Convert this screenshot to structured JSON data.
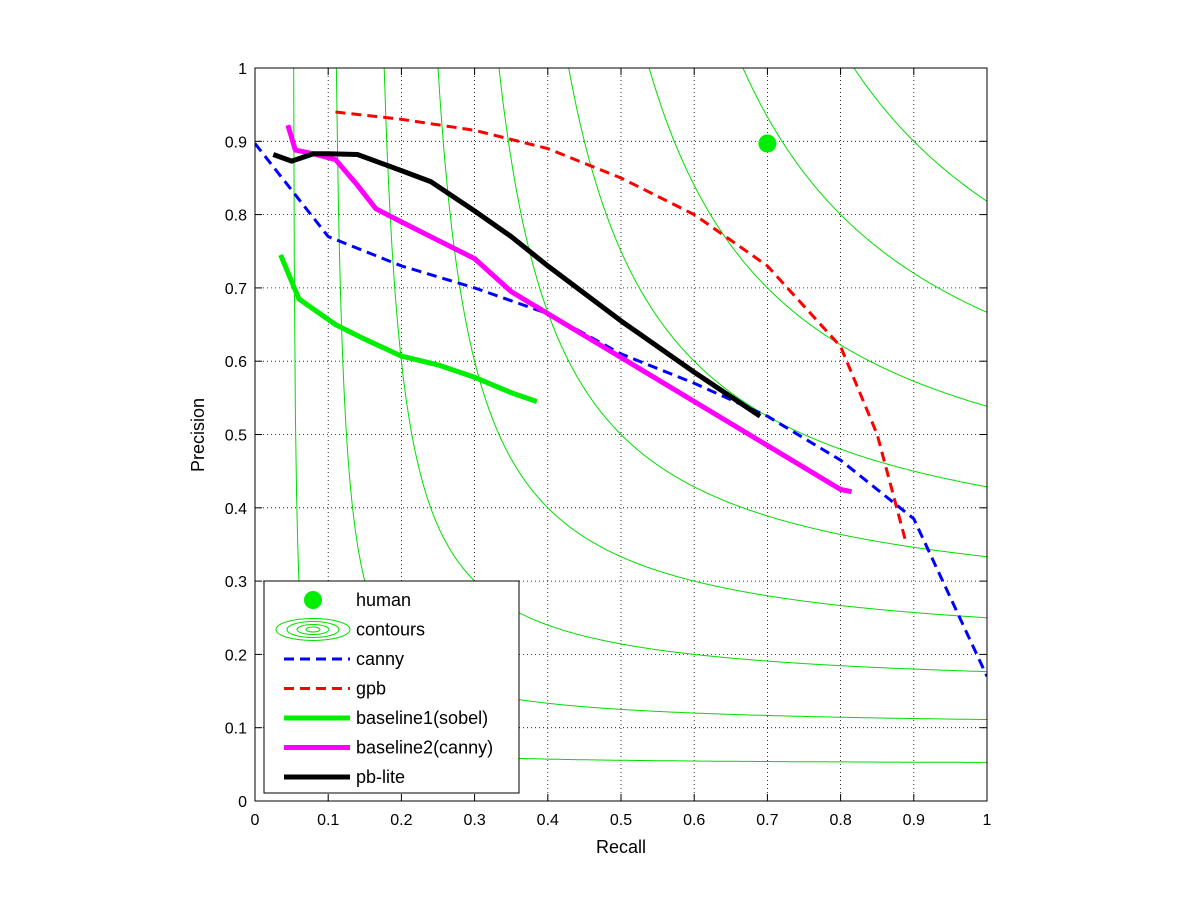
{
  "chart_data": {
    "type": "line",
    "xlabel": "Recall",
    "ylabel": "Precision",
    "xlim": [
      0,
      1
    ],
    "ylim": [
      0,
      1
    ],
    "xticks": [
      0,
      0.1,
      0.2,
      0.3,
      0.4,
      0.5,
      0.6,
      0.7,
      0.8,
      0.9,
      1
    ],
    "yticks": [
      0,
      0.1,
      0.2,
      0.3,
      0.4,
      0.5,
      0.6,
      0.7,
      0.8,
      0.9,
      1
    ],
    "xtick_labels": [
      "0",
      "0.1",
      "0.2",
      "0.3",
      "0.4",
      "0.5",
      "0.6",
      "0.7",
      "0.8",
      "0.9",
      "1"
    ],
    "ytick_labels": [
      "0",
      "0.1",
      "0.2",
      "0.3",
      "0.4",
      "0.5",
      "0.6",
      "0.7",
      "0.8",
      "0.9",
      "1"
    ],
    "grid": true,
    "legend_position": "bottom-left",
    "contours": {
      "label": "contours",
      "color": "#00dd00",
      "f_values": [
        0.1,
        0.2,
        0.3,
        0.4,
        0.5,
        0.6,
        0.7,
        0.8,
        0.9
      ]
    },
    "series": [
      {
        "name": "human",
        "style": "marker",
        "color": "#00ee00",
        "points": [
          [
            0.7,
            0.897
          ]
        ]
      },
      {
        "name": "canny",
        "style": "dashed",
        "color": "#0000ff",
        "points": [
          [
            0.0,
            0.897
          ],
          [
            0.1,
            0.77
          ],
          [
            0.2,
            0.73
          ],
          [
            0.3,
            0.7
          ],
          [
            0.4,
            0.665
          ],
          [
            0.5,
            0.61
          ],
          [
            0.6,
            0.57
          ],
          [
            0.7,
            0.525
          ],
          [
            0.8,
            0.465
          ],
          [
            0.9,
            0.385
          ],
          [
            1.0,
            0.17
          ]
        ]
      },
      {
        "name": "gpb",
        "style": "dashed",
        "color": "#ff0000",
        "points": [
          [
            0.11,
            0.94
          ],
          [
            0.2,
            0.93
          ],
          [
            0.3,
            0.915
          ],
          [
            0.4,
            0.89
          ],
          [
            0.5,
            0.85
          ],
          [
            0.6,
            0.8
          ],
          [
            0.7,
            0.73
          ],
          [
            0.8,
            0.62
          ],
          [
            0.85,
            0.5
          ],
          [
            0.89,
            0.35
          ]
        ]
      },
      {
        "name": "baseline1(sobel)",
        "style": "solid",
        "color": "#00ee00",
        "points": [
          [
            0.035,
            0.745
          ],
          [
            0.06,
            0.685
          ],
          [
            0.11,
            0.65
          ],
          [
            0.15,
            0.63
          ],
          [
            0.2,
            0.607
          ],
          [
            0.25,
            0.595
          ],
          [
            0.3,
            0.578
          ],
          [
            0.35,
            0.557
          ],
          [
            0.385,
            0.545
          ]
        ]
      },
      {
        "name": "baseline2(canny)",
        "style": "solid",
        "color": "#ff00ff",
        "points": [
          [
            0.045,
            0.922
          ],
          [
            0.055,
            0.888
          ],
          [
            0.08,
            0.883
          ],
          [
            0.11,
            0.875
          ],
          [
            0.14,
            0.84
          ],
          [
            0.165,
            0.808
          ],
          [
            0.2,
            0.79
          ],
          [
            0.25,
            0.765
          ],
          [
            0.3,
            0.74
          ],
          [
            0.35,
            0.695
          ],
          [
            0.4,
            0.665
          ],
          [
            0.5,
            0.605
          ],
          [
            0.6,
            0.545
          ],
          [
            0.7,
            0.485
          ],
          [
            0.8,
            0.425
          ],
          [
            0.815,
            0.422
          ]
        ]
      },
      {
        "name": "pb-lite",
        "style": "solid",
        "color": "#000000",
        "points": [
          [
            0.025,
            0.882
          ],
          [
            0.05,
            0.873
          ],
          [
            0.08,
            0.883
          ],
          [
            0.1,
            0.883
          ],
          [
            0.14,
            0.882
          ],
          [
            0.2,
            0.86
          ],
          [
            0.24,
            0.845
          ],
          [
            0.3,
            0.805
          ],
          [
            0.35,
            0.77
          ],
          [
            0.4,
            0.73
          ],
          [
            0.5,
            0.655
          ],
          [
            0.6,
            0.585
          ],
          [
            0.69,
            0.525
          ]
        ]
      }
    ],
    "legend_entries": [
      "human",
      "contours",
      "canny",
      "gpb",
      "baseline1(sobel)",
      "baseline2(canny)",
      "pb-lite"
    ]
  }
}
